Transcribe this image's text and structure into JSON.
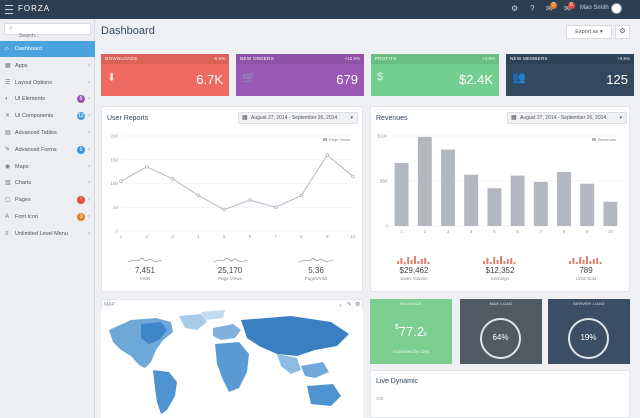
{
  "app": {
    "logo": "FORZA",
    "user_name": "Mao Smith",
    "notif_count_1": "2",
    "notif_count_2": "5"
  },
  "sidebar": {
    "search_placeholder": "Search...",
    "items": [
      {
        "label": "Dashboard",
        "icon": "home-icon",
        "glyph": "⌂"
      },
      {
        "label": "Apps",
        "icon": "grid-icon",
        "glyph": "▦"
      },
      {
        "label": "Layout Options",
        "icon": "layers-icon",
        "glyph": "☰"
      },
      {
        "label": "UI Elements",
        "icon": "palette-icon",
        "glyph": "◐",
        "badge": "6",
        "badge_color": "#9b59b6"
      },
      {
        "label": "UI Components",
        "icon": "wrench-icon",
        "glyph": "✕",
        "badge": "12",
        "badge_color": "#4aa3df"
      },
      {
        "label": "Advanced Tables",
        "icon": "table-icon",
        "glyph": "▤"
      },
      {
        "label": "Advanced Forms",
        "icon": "pencil-icon",
        "glyph": "✎",
        "badge": "6",
        "badge_color": "#3498db"
      },
      {
        "label": "Maps",
        "icon": "map-pin-icon",
        "glyph": "◉"
      },
      {
        "label": "Charts",
        "icon": "chart-icon",
        "glyph": "▥"
      },
      {
        "label": "Pages",
        "icon": "page-icon",
        "glyph": "▢",
        "badge": "!",
        "badge_color": "#e74c3c"
      },
      {
        "label": "Font Icon",
        "icon": "font-icon",
        "glyph": "A",
        "badge": "3",
        "badge_color": "#e67e22"
      },
      {
        "label": "Unlimited Level Menu",
        "icon": "sitemap-icon",
        "glyph": "≡"
      }
    ]
  },
  "header": {
    "title": "Dashboard",
    "export_label": "Export as ▾"
  },
  "stats": [
    {
      "label": "DOWNLOADS",
      "pct": "-6.5%",
      "value": "6.7K",
      "color": "#ef6a61",
      "icon": "download-icon",
      "glyph": "⬇"
    },
    {
      "label": "NEW ORDERS",
      "pct": "+12.5%",
      "value": "679",
      "color": "#9b59b6",
      "icon": "cart-icon",
      "glyph": "🛒"
    },
    {
      "label": "PROFITS",
      "pct": "+4.5%",
      "value": "$2.4K",
      "color": "#73cf8f",
      "icon": "money-icon",
      "glyph": "$"
    },
    {
      "label": "NEW MEMBERS",
      "pct": "+9.8%",
      "value": "125",
      "color": "#34495e",
      "icon": "users-icon",
      "glyph": "👥"
    }
  ],
  "user_reports": {
    "title": "User Reports",
    "date_range": "August 27, 2014 - September 26, 2014",
    "mini_stats": [
      {
        "value": "7,451",
        "label": "Visits"
      },
      {
        "value": "25,170",
        "label": "Page Views"
      },
      {
        "value": "5.36",
        "label": "Pages/Visit"
      }
    ]
  },
  "revenues": {
    "title": "Revenues",
    "date_range": "August 27, 2014 - September 26, 2014",
    "mini_stats": [
      {
        "value": "$29,462",
        "label": "Sales Volume"
      },
      {
        "value": "$12,352",
        "label": "Earnings"
      },
      {
        "value": "789",
        "label": "Units Sold"
      }
    ]
  },
  "map": {
    "title": "MAP"
  },
  "widgets": [
    {
      "title": "REVENUE",
      "value": "77.2",
      "prefix": "$",
      "suffix": "k",
      "sub": "Increased by 12%",
      "color": "#7ccf8f"
    },
    {
      "title": "MAX LOAD",
      "value": "64%",
      "color": "#505a63"
    },
    {
      "title": "SERVER LOAD",
      "value": "19%",
      "color": "#3b4e63"
    }
  ],
  "live_dynamic": {
    "title": "Live Dynamic",
    "tick": "100"
  },
  "chart_data": [
    {
      "type": "line",
      "title": "User Reports",
      "x": [
        1,
        2,
        3,
        4,
        5,
        6,
        7,
        8,
        9,
        10
      ],
      "series": [
        {
          "name": "Page Views",
          "values": [
            105,
            135,
            110,
            75,
            45,
            65,
            50,
            75,
            160,
            115
          ]
        }
      ],
      "ylim": [
        0,
        200
      ],
      "y_ticks": [
        "0",
        "50",
        "100",
        "150",
        "200"
      ],
      "grid": true,
      "legend": "top-right",
      "color": "#aab3bf"
    },
    {
      "type": "bar",
      "title": "Revenues",
      "categories": [
        "1",
        "2",
        "3",
        "4",
        "5",
        "6",
        "7",
        "8",
        "9",
        "10"
      ],
      "series": [
        {
          "name": "Revenues",
          "values": [
            7000,
            9900,
            8500,
            5700,
            4200,
            5600,
            4900,
            6000,
            4700,
            2700
          ]
        }
      ],
      "ylim": [
        0,
        10000
      ],
      "y_ticks": [
        "0",
        "$5K",
        "$10K"
      ],
      "grid": true,
      "legend": "top-right",
      "color": "#b3b8c0"
    }
  ]
}
